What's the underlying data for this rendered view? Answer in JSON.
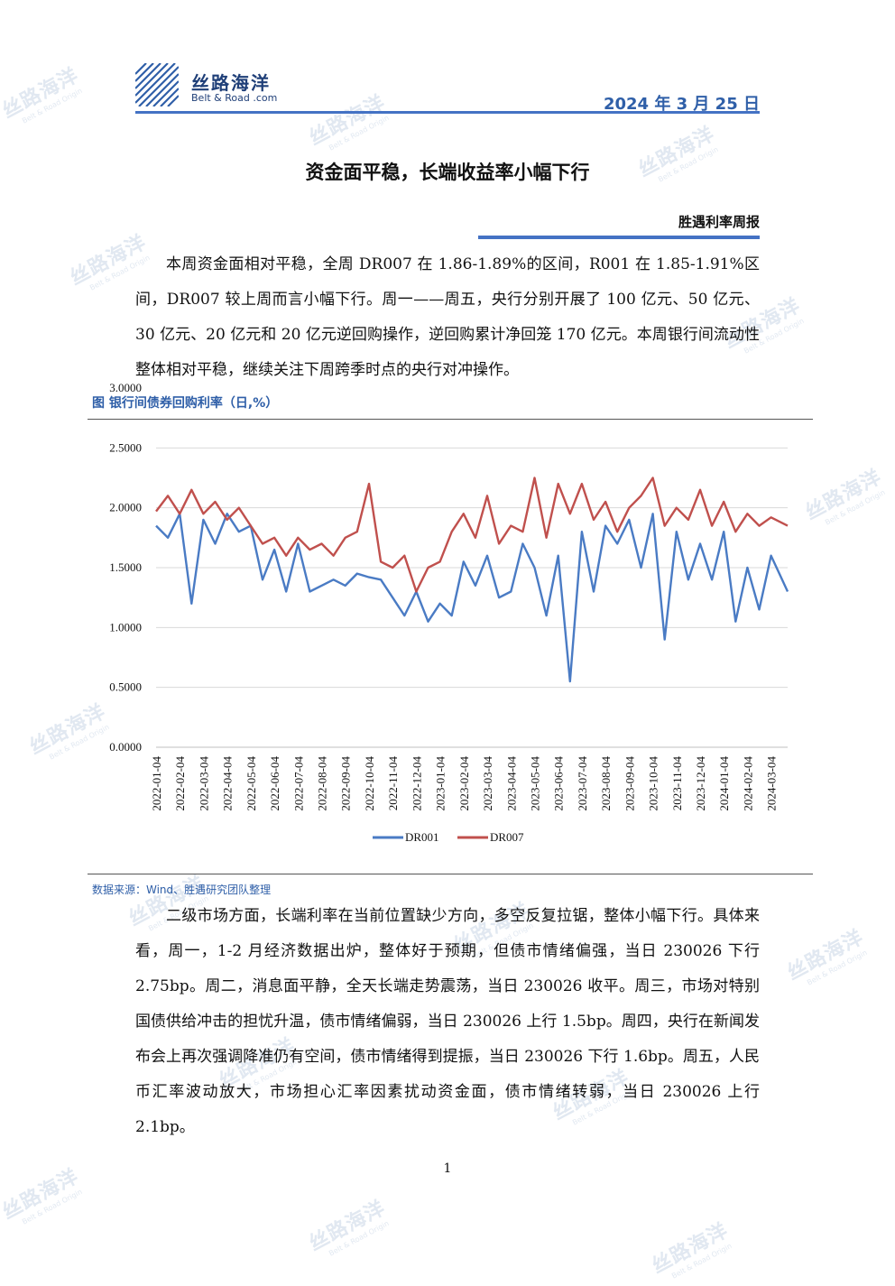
{
  "header": {
    "logo_cn": "丝路海洋",
    "logo_en": "Belt & Road .com",
    "date": "2024 年 3 月 25 日"
  },
  "title": "资金面平稳，长端收益率小幅下行",
  "report_type": "胜遇利率周报",
  "para1": "本周资金面相对平稳，全周 DR007 在 1.86-1.89%的区间，R001 在 1.85-1.91%区间，DR007 较上周而言小幅下行。周一——周五，央行分别开展了 100 亿元、50 亿元、30 亿元、20 亿元和 20 亿元逆回购操作，逆回购累计净回笼 170 亿元。本周银行间流动性整体相对平稳，继续关注下周跨季时点的央行对冲操作。",
  "figure": {
    "caption": "图    银行间债券回购利率（日,%）",
    "source": "数据来源：Wind、胜遇研究团队整理"
  },
  "para2": "二级市场方面，长端利率在当前位置缺少方向，多空反复拉锯，整体小幅下行。具体来看，周一，1-2 月经济数据出炉，整体好于预期，但债市情绪偏强，当日 230026 下行 2.75bp。周二，消息面平静，全天长端走势震荡，当日 230026 收平。周三，市场对特别国债供给冲击的担忧升温，债市情绪偏弱，当日 230026 上行 1.5bp。周四，央行在新闻发布会上再次强调降准仍有空间，债市情绪得到提振，当日 230026 下行 1.6bp。周五，人民币汇率波动放大，市场担心汇率因素扰动资金面，债市情绪转弱，当日 230026 上行 2.1bp。",
  "page_number": "1",
  "watermark": {
    "cn": "丝路海洋",
    "en": "Belt & Road Origin"
  },
  "chart_data": {
    "type": "line",
    "title": "",
    "ylim": [
      0,
      3
    ],
    "yticks": [
      "0.0000",
      "0.5000",
      "1.0000",
      "1.5000",
      "2.0000",
      "2.5000",
      "3.0000"
    ],
    "xticks": [
      "2022-01-04",
      "2022-02-04",
      "2022-03-04",
      "2022-04-04",
      "2022-05-04",
      "2022-06-04",
      "2022-07-04",
      "2022-08-04",
      "2022-09-04",
      "2022-10-04",
      "2022-11-04",
      "2022-12-04",
      "2023-01-04",
      "2023-02-04",
      "2023-03-04",
      "2023-04-04",
      "2023-05-04",
      "2023-06-04",
      "2023-07-04",
      "2023-08-04",
      "2023-09-04",
      "2023-10-04",
      "2023-11-04",
      "2023-12-04",
      "2024-01-04",
      "2024-02-04",
      "2024-03-04"
    ],
    "legend_position": "bottom",
    "x_months": [
      0,
      0.5,
      1,
      1.5,
      2,
      2.5,
      3,
      3.5,
      4,
      4.5,
      5,
      5.5,
      6,
      6.5,
      7,
      7.5,
      8,
      8.5,
      9,
      9.5,
      10,
      10.5,
      11,
      11.5,
      12,
      12.5,
      13,
      13.5,
      14,
      14.5,
      15,
      15.5,
      16,
      16.5,
      17,
      17.5,
      18,
      18.5,
      19,
      19.5,
      20,
      20.5,
      21,
      21.5,
      22,
      22.5,
      23,
      23.5,
      24,
      24.5,
      25,
      25.5,
      26,
      26.7
    ],
    "series": [
      {
        "name": "DR001",
        "color": "#4a7bc4",
        "values": [
          1.85,
          1.75,
          1.95,
          1.2,
          1.9,
          1.7,
          1.95,
          1.8,
          1.85,
          1.4,
          1.65,
          1.3,
          1.7,
          1.3,
          1.35,
          1.4,
          1.35,
          1.45,
          1.42,
          1.4,
          1.25,
          1.1,
          1.3,
          1.05,
          1.2,
          1.1,
          1.55,
          1.35,
          1.6,
          1.25,
          1.3,
          1.7,
          1.5,
          1.1,
          1.6,
          0.55,
          1.8,
          1.3,
          1.85,
          1.7,
          1.9,
          1.5,
          1.95,
          0.9,
          1.8,
          1.4,
          1.7,
          1.4,
          1.8,
          1.05,
          1.5,
          1.15,
          1.6,
          1.3
        ]
      },
      {
        "name": "DR007",
        "color": "#c0504d",
        "values": [
          1.97,
          2.1,
          1.95,
          2.15,
          1.95,
          2.05,
          1.9,
          2.0,
          1.85,
          1.7,
          1.75,
          1.6,
          1.75,
          1.65,
          1.7,
          1.6,
          1.75,
          1.8,
          2.2,
          1.55,
          1.5,
          1.6,
          1.3,
          1.5,
          1.55,
          1.8,
          1.95,
          1.75,
          2.1,
          1.7,
          1.85,
          1.8,
          2.25,
          1.75,
          2.2,
          1.95,
          2.2,
          1.9,
          2.05,
          1.8,
          2.0,
          2.1,
          2.25,
          1.85,
          2.0,
          1.9,
          2.15,
          1.85,
          2.05,
          1.8,
          1.95,
          1.85,
          1.92,
          1.85
        ]
      }
    ]
  }
}
